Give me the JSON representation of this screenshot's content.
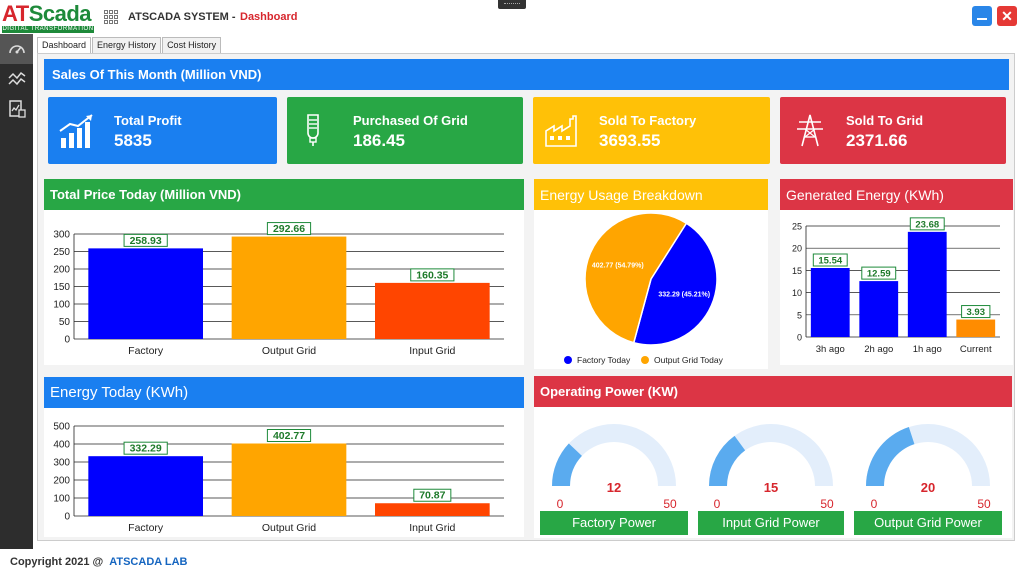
{
  "app": {
    "logo_main_a": "AT",
    "logo_main_b": "Scada",
    "logo_sub": "DIGITAL TRANSFORMATION",
    "system_title": "ATSCADA SYSTEM  -",
    "page_title": "Dashboard",
    "close_label": "✕"
  },
  "tabs": [
    {
      "label": "Dashboard"
    },
    {
      "label": "Energy History"
    },
    {
      "label": "Cost History"
    }
  ],
  "colors": {
    "blue": "#1a7ff0",
    "green": "#28a745",
    "yellow": "#ffc107",
    "red": "#dc3545",
    "chart_blue": "#0000ff",
    "chart_orange": "#ffa500",
    "chart_red": "#ff4500",
    "gauge_fill": "#5aabef",
    "gauge_track": "#e3eefb"
  },
  "sales": {
    "title": "Sales Of This Month (Million VND)",
    "cards": [
      {
        "label": "Total Profit",
        "value": "5835",
        "icon": "chart-growth-icon"
      },
      {
        "label": "Purchased Of Grid",
        "value": "186.45",
        "icon": "bulb-icon"
      },
      {
        "label": "Sold To Factory",
        "value": "3693.55",
        "icon": "factory-icon"
      },
      {
        "label": "Sold To Grid",
        "value": "2371.66",
        "icon": "power-tower-icon"
      }
    ]
  },
  "price_today": {
    "title": "Total Price Today (Million VND)"
  },
  "usage_breakdown": {
    "title": "Energy Usage Breakdown"
  },
  "generated": {
    "title": "Generated Energy (KWh)"
  },
  "energy_today": {
    "title": "Energy Today (KWh)"
  },
  "operating_power": {
    "title": "Operating Power (KW)",
    "gauges": [
      {
        "label": "Factory Power",
        "value": 12,
        "min": 0,
        "max": 50
      },
      {
        "label": "Input Grid Power",
        "value": 15,
        "min": 0,
        "max": 50
      },
      {
        "label": "Output Grid Power",
        "value": 20,
        "min": 0,
        "max": 50
      }
    ]
  },
  "chart_data": [
    {
      "type": "bar",
      "title": "Total Price Today (Million VND)",
      "categories": [
        "Factory",
        "Output Grid",
        "Input Grid"
      ],
      "values": [
        258.93,
        292.66,
        160.35
      ],
      "value_labels": [
        "258.93",
        "292.66",
        "160.35"
      ],
      "colors": [
        "#0000ff",
        "#ffa500",
        "#ff4500"
      ],
      "ylim": [
        0,
        300
      ],
      "yticks": [
        0,
        50,
        100,
        150,
        200,
        250,
        300
      ],
      "grid": true
    },
    {
      "type": "pie",
      "title": "Energy Usage Breakdown",
      "labels": [
        "Factory Today",
        "Output Grid Today"
      ],
      "values": [
        332.29,
        402.77
      ],
      "slice_labels": [
        "332.29 (45.21%)",
        "402.77 (54.79%)"
      ],
      "colors": [
        "#0000ff",
        "#ffa500"
      ],
      "legend": "bottom"
    },
    {
      "type": "bar",
      "title": "Generated Energy (KWh)",
      "categories": [
        "3h ago",
        "2h ago",
        "1h ago",
        "Current"
      ],
      "values": [
        15.54,
        12.59,
        23.68,
        3.93
      ],
      "value_labels": [
        "15.54",
        "12.59",
        "23.68",
        "3.93"
      ],
      "colors": [
        "#0000ff",
        "#0000ff",
        "#0000ff",
        "#ff8c00"
      ],
      "ylim": [
        0,
        25
      ],
      "yticks": [
        0,
        5,
        10,
        15,
        20,
        25
      ],
      "grid": true
    },
    {
      "type": "bar",
      "title": "Energy Today (KWh)",
      "categories": [
        "Factory",
        "Output Grid",
        "Input Grid"
      ],
      "values": [
        332.29,
        402.77,
        70.87
      ],
      "value_labels": [
        "332.29",
        "402.77",
        "70.87"
      ],
      "colors": [
        "#0000ff",
        "#ffa500",
        "#ff4500"
      ],
      "ylim": [
        0,
        500
      ],
      "yticks": [
        0,
        100,
        200,
        300,
        400,
        500
      ],
      "grid": true
    }
  ],
  "footer": {
    "copyright": "Copyright 2021 @",
    "lab": "ATSCADA LAB"
  }
}
